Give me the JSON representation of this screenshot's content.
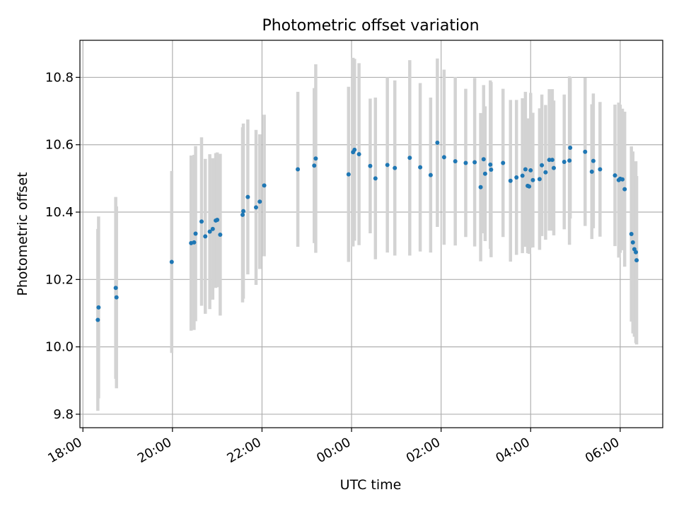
{
  "chart_data": {
    "type": "scatter",
    "title": "Photometric offset variation",
    "xlabel": "UTC time",
    "ylabel": "Photometric offset",
    "x_ticks": [
      "18:00",
      "20:00",
      "22:00",
      "00:00",
      "02:00",
      "04:00",
      "06:00"
    ],
    "y_ticks": [
      "9.8",
      "10.0",
      "10.2",
      "10.4",
      "10.6",
      "10.8"
    ],
    "xlim": [
      "17:56",
      "06:57"
    ],
    "ylim": [
      9.76,
      10.91
    ],
    "grid": true,
    "colors": {
      "point": "#1f77b4",
      "errorbar": "#d3d3d3",
      "grid": "#b0b0b0"
    },
    "series": [
      {
        "x": [
          "18:20",
          "18:21",
          "18:44",
          "18:45",
          "19:59",
          "20:25",
          "20:29",
          "20:31",
          "20:39",
          "20:44",
          "20:50",
          "20:54",
          "20:58",
          "21:00",
          "21:04",
          "21:34",
          "21:35",
          "21:41",
          "21:52",
          "21:57",
          "22:03",
          "22:48",
          "23:10",
          "23:12",
          "23:56",
          "24:02",
          "24:04",
          "24:10",
          "24:25",
          "24:32",
          "24:48",
          "24:58",
          "25:18",
          "25:32",
          "25:46",
          "25:55",
          "26:04",
          "26:19",
          "26:33",
          "26:45",
          "26:53",
          "26:57",
          "26:59",
          "27:06",
          "27:07",
          "27:23",
          "27:33",
          "27:41",
          "27:49",
          "27:53",
          "27:56",
          "27:58",
          "28:00",
          "28:03",
          "28:12",
          "28:15",
          "28:20",
          "28:25",
          "28:29",
          "28:31",
          "28:45",
          "28:52",
          "28:53",
          "29:13",
          "29:22",
          "29:24",
          "29:33",
          "29:53",
          "29:58",
          "30:00",
          "30:03",
          "30:06",
          "30:15",
          "30:17",
          "30:19",
          "30:21",
          "30:22"
        ],
        "y": [
          10.08,
          10.117,
          10.175,
          10.147,
          10.252,
          10.308,
          10.31,
          10.336,
          10.372,
          10.328,
          10.342,
          10.35,
          10.375,
          10.377,
          10.333,
          10.392,
          10.403,
          10.445,
          10.414,
          10.431,
          10.479,
          10.527,
          10.538,
          10.559,
          10.512,
          10.578,
          10.585,
          10.572,
          10.537,
          10.5,
          10.54,
          10.531,
          10.561,
          10.533,
          10.51,
          10.606,
          10.563,
          10.551,
          10.546,
          10.548,
          10.474,
          10.557,
          10.514,
          10.541,
          10.526,
          10.546,
          10.493,
          10.503,
          10.508,
          10.527,
          10.478,
          10.476,
          10.524,
          10.495,
          10.498,
          10.539,
          10.518,
          10.555,
          10.555,
          10.531,
          10.549,
          10.553,
          10.591,
          10.579,
          10.52,
          10.552,
          10.527,
          10.509,
          10.495,
          10.499,
          10.497,
          10.468,
          10.335,
          10.31,
          10.29,
          10.281,
          10.257
        ],
        "yerr": [
          0.27,
          0.27,
          0.27,
          0.27,
          0.27,
          0.26,
          0.26,
          0.26,
          0.25,
          0.23,
          0.23,
          0.21,
          0.2,
          0.2,
          0.24,
          0.26,
          0.26,
          0.23,
          0.23,
          0.2,
          0.21,
          0.23,
          0.23,
          0.28,
          0.26,
          0.28,
          0.27,
          0.27,
          0.2,
          0.24,
          0.26,
          0.26,
          0.29,
          0.25,
          0.23,
          0.25,
          0.26,
          0.25,
          0.22,
          0.25,
          0.22,
          0.22,
          0.2,
          0.25,
          0.26,
          0.22,
          0.24,
          0.23,
          0.23,
          0.23,
          0.2,
          0.2,
          0.23,
          0.2,
          0.21,
          0.21,
          0.2,
          0.21,
          0.21,
          0.2,
          0.2,
          0.25,
          0.21,
          0.22,
          0.2,
          0.2,
          0.2,
          0.21,
          0.23,
          0.22,
          0.21,
          0.23,
          0.26,
          0.27,
          0.26,
          0.27,
          0.25
        ]
      }
    ]
  }
}
